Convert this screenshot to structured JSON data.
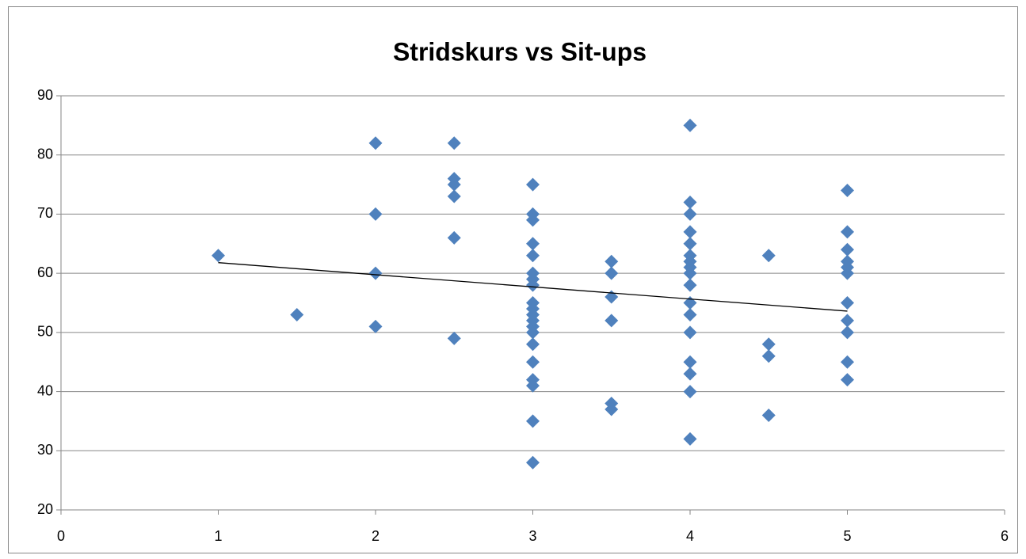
{
  "chart_data": {
    "type": "scatter",
    "title": "Stridskurs vs Sit-ups",
    "color": "#4f81bd",
    "x": [
      1,
      1.5,
      2,
      2,
      2,
      2,
      2.5,
      2.5,
      2.5,
      2.5,
      2.5,
      2.5,
      3,
      3,
      3,
      3,
      3,
      3,
      3,
      3,
      3,
      3,
      3,
      3,
      3,
      3,
      3,
      3,
      3,
      3,
      3,
      3,
      3.5,
      3.5,
      3.5,
      3.5,
      3.5,
      3.5,
      4,
      4,
      4,
      4,
      4,
      4,
      4,
      4,
      4,
      4,
      4,
      4,
      4,
      4,
      4,
      4,
      4,
      4.5,
      4.5,
      4.5,
      4.5,
      5,
      5,
      5,
      5,
      5,
      5,
      5,
      5,
      5,
      5,
      5
    ],
    "values": [
      63,
      53,
      82,
      70,
      60,
      51,
      82,
      76,
      75,
      73,
      66,
      49,
      75,
      70,
      69,
      65,
      63,
      60,
      59,
      58,
      55,
      54,
      53,
      52,
      51,
      50,
      48,
      45,
      42,
      41,
      35,
      28,
      62,
      60,
      56,
      52,
      38,
      37,
      85,
      72,
      70,
      67,
      65,
      63,
      62,
      61,
      60,
      58,
      55,
      53,
      50,
      45,
      43,
      40,
      32,
      63,
      48,
      46,
      36,
      74,
      67,
      64,
      62,
      61,
      60,
      55,
      52,
      50,
      45,
      42
    ],
    "trendline": {
      "color": "#000000",
      "x": [
        1,
        5
      ],
      "values": [
        61.8,
        53.6
      ]
    },
    "xlim": [
      0,
      6
    ],
    "xticks": [
      0,
      1,
      2,
      3,
      4,
      5,
      6
    ],
    "ylim": [
      20,
      90
    ],
    "yticks": [
      20,
      30,
      40,
      50,
      60,
      70,
      80,
      90
    ],
    "grid": true
  }
}
